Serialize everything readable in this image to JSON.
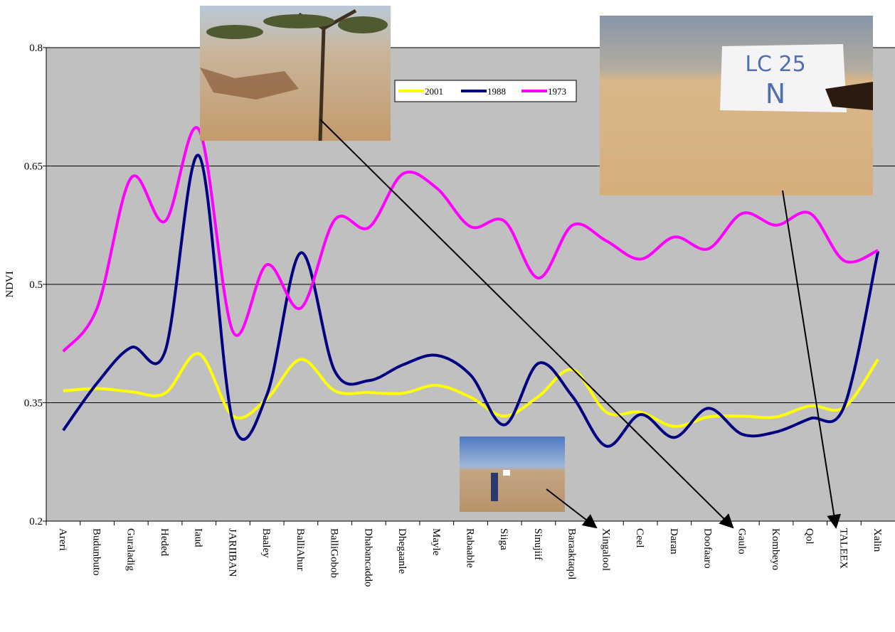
{
  "chart_data": {
    "type": "line",
    "y_label": "NDVI",
    "categories": [
      "Areri",
      "Budunbuto",
      "Guraladig",
      "Heded",
      "Iaud",
      "JARIIBAN",
      "Baaley",
      "BalliAhur",
      "BalliGobob",
      "Dhabancaddo",
      "Dhegaanle",
      "Mayle",
      "Rabaable",
      "Siiga",
      "Sinujiif",
      "Baraaktaqol",
      "Xingalool",
      "Ceel",
      "Daran",
      "Doofaaro",
      "Gaulo",
      "Kombeyo",
      "Qol",
      "TALEEX",
      "Xalin"
    ],
    "series": [
      {
        "name": "2001",
        "color": "#ffff00",
        "values": [
          0.365,
          0.368,
          0.364,
          0.362,
          0.412,
          0.333,
          0.355,
          0.405,
          0.365,
          0.363,
          0.362,
          0.372,
          0.357,
          0.333,
          0.358,
          0.392,
          0.338,
          0.338,
          0.32,
          0.332,
          0.333,
          0.332,
          0.346,
          0.344,
          0.405
        ]
      },
      {
        "name": "1988",
        "color": "#000080",
        "values": [
          0.315,
          0.375,
          0.42,
          0.415,
          0.663,
          0.325,
          0.36,
          0.54,
          0.39,
          0.378,
          0.398,
          0.41,
          0.385,
          0.322,
          0.4,
          0.358,
          0.295,
          0.335,
          0.306,
          0.343,
          0.31,
          0.313,
          0.33,
          0.345,
          0.542
        ]
      },
      {
        "name": "1973",
        "color": "#ff00ff",
        "values": [
          0.415,
          0.47,
          0.635,
          0.58,
          0.696,
          0.44,
          0.525,
          0.47,
          0.582,
          0.572,
          0.64,
          0.622,
          0.573,
          0.58,
          0.508,
          0.575,
          0.555,
          0.532,
          0.56,
          0.545,
          0.59,
          0.575,
          0.59,
          0.53,
          0.543
        ]
      }
    ],
    "ylim": [
      0.2,
      0.8
    ],
    "yticks": [
      0.2,
      0.35,
      0.5,
      0.65,
      0.8
    ],
    "grid": true,
    "photo_text": [
      "LC 25",
      "N"
    ]
  }
}
